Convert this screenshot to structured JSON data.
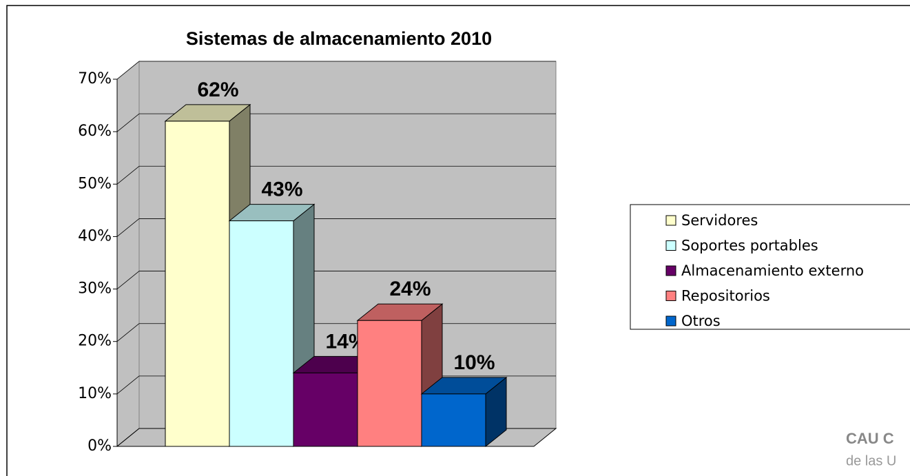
{
  "chart_data": {
    "type": "bar3d",
    "title": "Sistemas de almacenamiento  2010",
    "categories": [
      "Servidores",
      "Soportes portables",
      "Almacenamiento externo",
      "Repositorios",
      "Otros"
    ],
    "values": [
      62,
      43,
      14,
      24,
      10
    ],
    "value_labels": [
      "62%",
      "43%",
      "14%",
      "24%",
      "10%"
    ],
    "colors": [
      "#ffffcc",
      "#ccffff",
      "#660066",
      "#ff8080",
      "#0066cc"
    ],
    "ylim": [
      0,
      70
    ],
    "yticks": [
      {
        "value": 0,
        "label": "0%"
      },
      {
        "value": 10,
        "label": "10%"
      },
      {
        "value": 20,
        "label": "20%"
      },
      {
        "value": 30,
        "label": "30%"
      },
      {
        "value": 40,
        "label": "40%"
      },
      {
        "value": 50,
        "label": "50%"
      },
      {
        "value": 60,
        "label": "60%"
      },
      {
        "value": 70,
        "label": "70%"
      }
    ],
    "grid": true,
    "legend": "right",
    "logo_text": "CAU C",
    "logo_subtext": "de las U"
  }
}
